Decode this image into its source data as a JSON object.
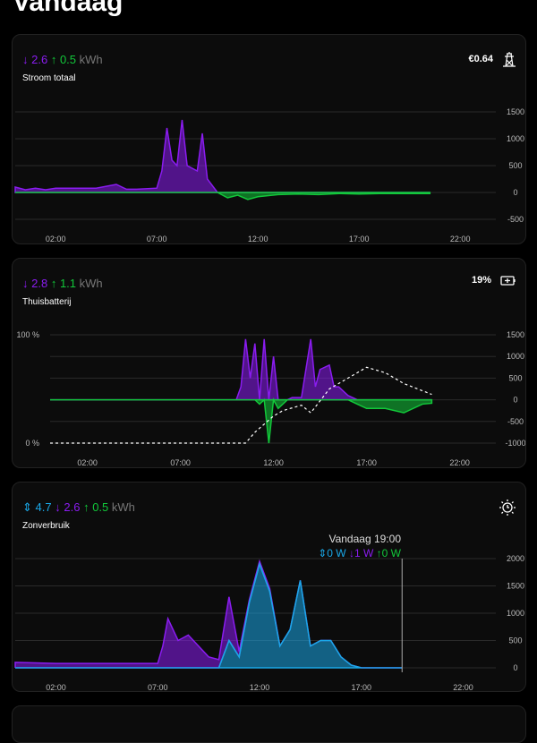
{
  "page_title": "Vandaag",
  "cards": [
    {
      "name": "Stroom totaal",
      "import_kwh": "2.6",
      "export_kwh": "0.5",
      "unit": "kWh",
      "right_value": "€0.64",
      "icon": "transmission-tower-icon"
    },
    {
      "name": "Thuisbatterij",
      "import_kwh": "2.8",
      "export_kwh": "1.1",
      "unit": "kWh",
      "right_value": "19%",
      "icon": "battery-charging-icon"
    },
    {
      "name": "Zonverbruik",
      "solar_kwh": "4.7",
      "import_kwh": "2.6",
      "export_kwh": "0.5",
      "unit": "kWh",
      "icon": "solar-clock-icon",
      "tooltip": {
        "title": "Vandaag 19:00",
        "solar": "0 W",
        "import": "1 W",
        "export": "0 W"
      }
    }
  ],
  "colors": {
    "import": "#8a1cf0",
    "export": "#12c83a",
    "solar": "#1aa8e8"
  },
  "chart_data": [
    {
      "type": "area",
      "x_ticks": [
        "02:00",
        "07:00",
        "12:00",
        "17:00",
        "22:00"
      ],
      "y_ticks": [
        "1500",
        "1000",
        "500",
        "0",
        "-500"
      ],
      "ylim": [
        -500,
        1500
      ],
      "grid": true,
      "x": [
        "00:00",
        "00:30",
        "01:00",
        "01:30",
        "02:00",
        "03:00",
        "04:00",
        "05:00",
        "05:30",
        "06:00",
        "07:00",
        "07:15",
        "07:30",
        "07:45",
        "08:00",
        "08:15",
        "08:30",
        "09:00",
        "09:15",
        "09:30",
        "10:00",
        "10:30",
        "11:00",
        "11:30",
        "12:00",
        "13:00",
        "14:00",
        "15:00",
        "16:00",
        "17:00",
        "18:00",
        "19:00",
        "20:00",
        "20:30"
      ],
      "values": [
        100,
        50,
        80,
        50,
        80,
        80,
        80,
        150,
        60,
        60,
        80,
        400,
        1200,
        600,
        500,
        1350,
        500,
        400,
        1100,
        250,
        0,
        -100,
        -50,
        -130,
        -80,
        -40,
        -30,
        -40,
        -20,
        -30,
        -20,
        -20,
        -20,
        -20
      ]
    },
    {
      "type": "area",
      "x_ticks": [
        "02:00",
        "07:00",
        "12:00",
        "17:00",
        "22:00"
      ],
      "y_ticks": [
        "1500",
        "1000",
        "500",
        "0",
        "-500",
        "-1000"
      ],
      "y2_ticks": [
        "100 %",
        "0 %"
      ],
      "ylim": [
        -1000,
        1500
      ],
      "grid": true,
      "x": [
        "00:00",
        "10:00",
        "10:15",
        "10:30",
        "10:45",
        "11:00",
        "11:15",
        "11:30",
        "11:45",
        "12:00",
        "12:15",
        "12:45",
        "13:00",
        "13:30",
        "14:00",
        "14:15",
        "14:30",
        "15:00",
        "15:15",
        "15:30",
        "16:00",
        "16:30",
        "17:00",
        "18:00",
        "19:00",
        "20:00",
        "20:30"
      ],
      "values": [
        0,
        0,
        300,
        1400,
        500,
        1300,
        -100,
        1400,
        -1000,
        1000,
        -200,
        0,
        50,
        50,
        1400,
        300,
        700,
        800,
        300,
        300,
        100,
        -100,
        -200,
        -200,
        -300,
        -100,
        -80
      ],
      "soc_x": [
        "00:00",
        "10:30",
        "11:00",
        "12:00",
        "12:30",
        "13:30",
        "14:00",
        "15:00",
        "16:30",
        "17:00",
        "18:00",
        "19:00",
        "20:30"
      ],
      "soc": [
        0,
        0,
        10,
        25,
        30,
        35,
        28,
        50,
        65,
        70,
        65,
        55,
        45
      ]
    },
    {
      "type": "area",
      "x_ticks": [
        "02:00",
        "07:00",
        "12:00",
        "17:00",
        "22:00"
      ],
      "y_ticks": [
        "2000",
        "1500",
        "1000",
        "500",
        "0"
      ],
      "ylim": [
        0,
        2000
      ],
      "grid": true,
      "x": [
        "00:00",
        "02:00",
        "04:00",
        "06:00",
        "07:00",
        "07:15",
        "07:30",
        "08:00",
        "08:30",
        "09:00",
        "09:30",
        "10:00",
        "10:30",
        "11:00",
        "11:30",
        "12:00",
        "12:30",
        "13:00",
        "13:30",
        "14:00",
        "14:30",
        "15:00",
        "15:30",
        "16:00",
        "16:30",
        "17:00",
        "19:00"
      ],
      "solar": [
        0,
        0,
        0,
        0,
        0,
        0,
        0,
        0,
        0,
        0,
        0,
        0,
        500,
        200,
        1200,
        1900,
        1400,
        400,
        700,
        1600,
        400,
        500,
        500,
        200,
        50,
        0,
        0
      ],
      "import": [
        100,
        80,
        80,
        80,
        80,
        400,
        900,
        500,
        600,
        400,
        200,
        150,
        800,
        100,
        50,
        50,
        50,
        0,
        0,
        0,
        0,
        0,
        0,
        0,
        0,
        0,
        0
      ],
      "cursor": "19:00"
    }
  ]
}
